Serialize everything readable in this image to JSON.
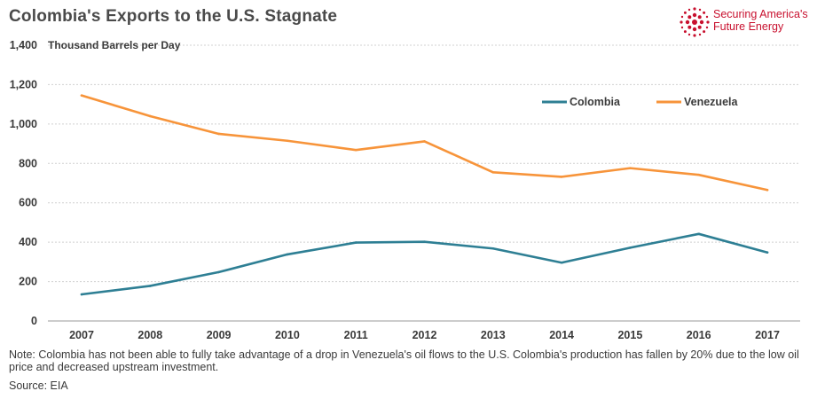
{
  "header": {
    "title": "Colombia's Exports to the U.S. Stagnate",
    "logo_line1": "Securing America's",
    "logo_line2": "Future Energy",
    "logo_icon": "sunburst-icon",
    "logo_color": "#c8102e"
  },
  "chart_data": {
    "type": "line",
    "title": "Colombia's Exports to the U.S. Stagnate",
    "ylabel": "Thousand Barrels per Day",
    "xlabel": "",
    "x": [
      "2007",
      "2008",
      "2009",
      "2010",
      "2011",
      "2012",
      "2013",
      "2014",
      "2015",
      "2016",
      "2017"
    ],
    "ylim": [
      0,
      1400
    ],
    "yticks": [
      0,
      200,
      400,
      600,
      800,
      1000,
      1200,
      1400
    ],
    "ytick_labels": [
      "0",
      "200",
      "400",
      "600",
      "800",
      "1,000",
      "1,200",
      "1,400"
    ],
    "grid": true,
    "legend_position": "top-right",
    "series": [
      {
        "name": "Colombia",
        "color": "#2e7f94",
        "values": [
          135,
          178,
          248,
          338,
          398,
          402,
          368,
          296,
          372,
          442,
          348
        ]
      },
      {
        "name": "Venezuela",
        "color": "#f7943a",
        "values": [
          1145,
          1040,
          950,
          915,
          868,
          912,
          755,
          732,
          776,
          742,
          665
        ]
      }
    ]
  },
  "footer": {
    "note": "Note: Colombia has not been able to fully take advantage of a drop in Venezuela's oil flows to the U.S. Colombia's production has fallen by 20% due to the low oil price and decreased upstream investment.",
    "source": "Source: EIA"
  }
}
